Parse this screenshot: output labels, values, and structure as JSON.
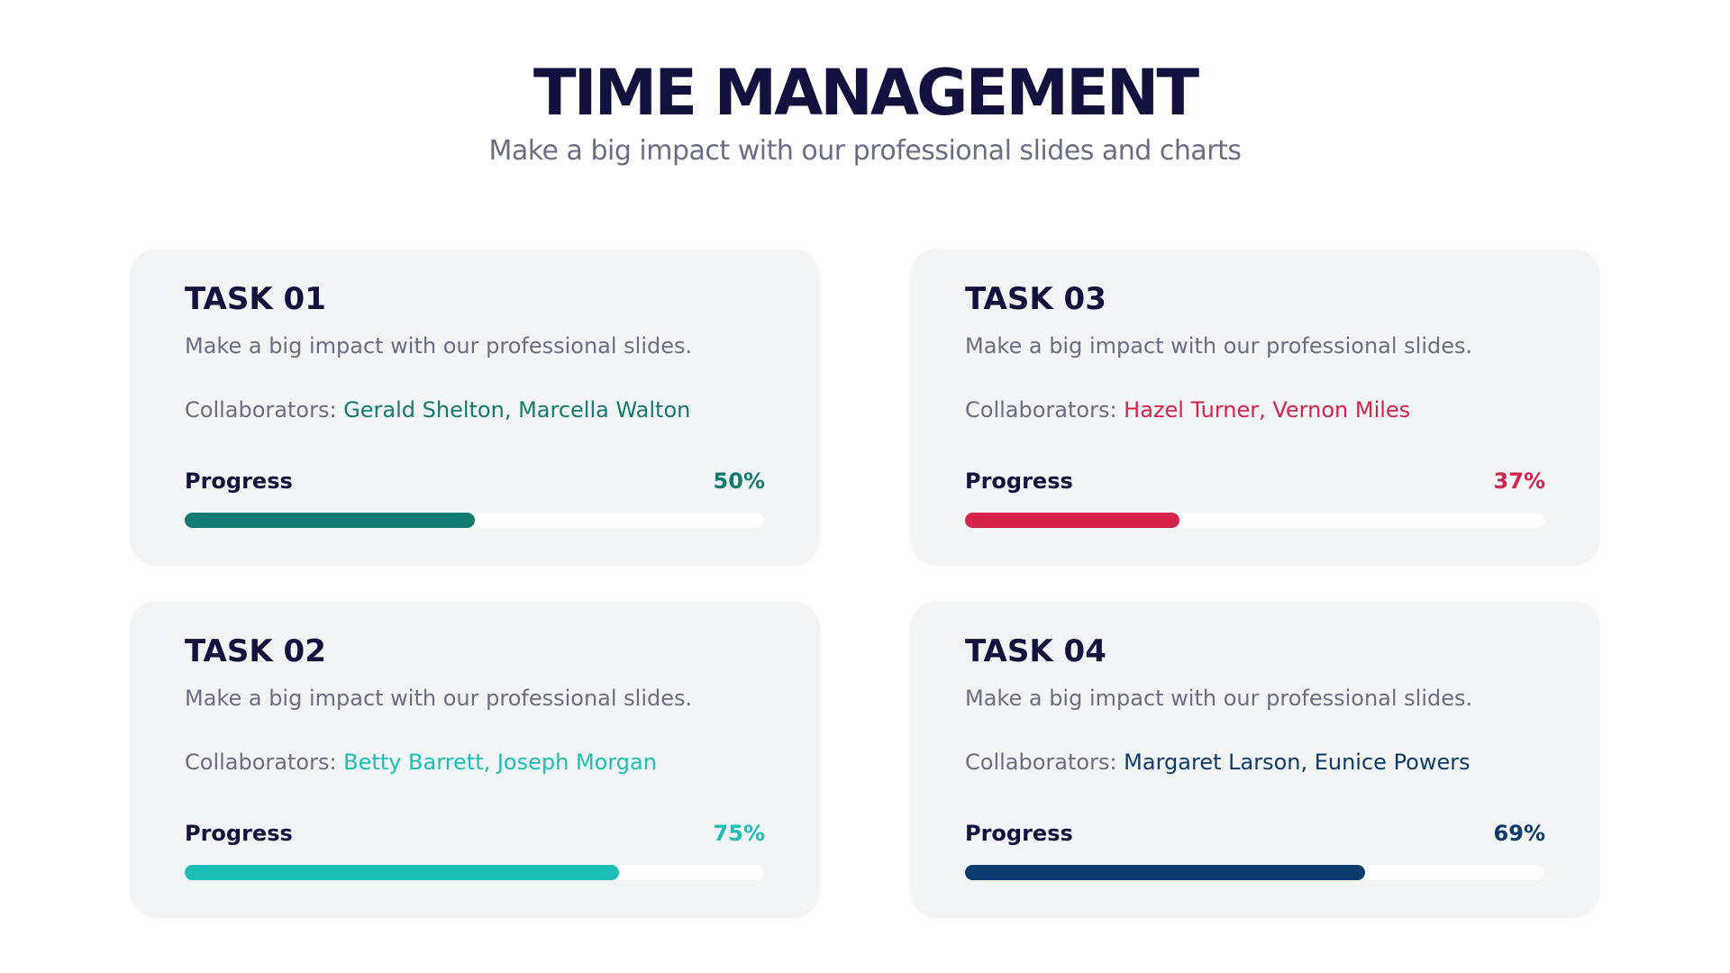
{
  "header": {
    "title": "TIME MANAGEMENT",
    "subtitle": "Make a big impact with our professional slides and charts"
  },
  "tasks": [
    {
      "title": "TASK 01",
      "description": "Make a big impact with our professional slides.",
      "collaborators_label": "Collaborators:",
      "collaborators": "Gerald Shelton, Marcella Walton",
      "progress_heading": "Progress",
      "value": 50,
      "value_label": "50%",
      "color": "#137a72"
    },
    {
      "title": "TASK 02",
      "description": "Make a big impact with our professional slides.",
      "collaborators_label": "Collaborators:",
      "collaborators": "Betty Barrett, Joseph Morgan",
      "progress_heading": "Progress",
      "value": 75,
      "value_label": "75%",
      "color": "#1cbfb8"
    },
    {
      "title": "TASK 03",
      "description": "Make a big impact with our professional slides.",
      "collaborators_label": "Collaborators:",
      "collaborators": "Hazel Turner, Vernon Miles",
      "progress_heading": "Progress",
      "value": 37,
      "value_label": "37%",
      "color": "#d6234a"
    },
    {
      "title": "TASK 04",
      "description": "Make a big impact with our professional slides.",
      "collaborators_label": "Collaborators:",
      "collaborators": "Margaret Larson, Eunice Powers",
      "progress_heading": "Progress",
      "value": 69,
      "value_label": "69%",
      "color": "#0c3b6e"
    }
  ]
}
